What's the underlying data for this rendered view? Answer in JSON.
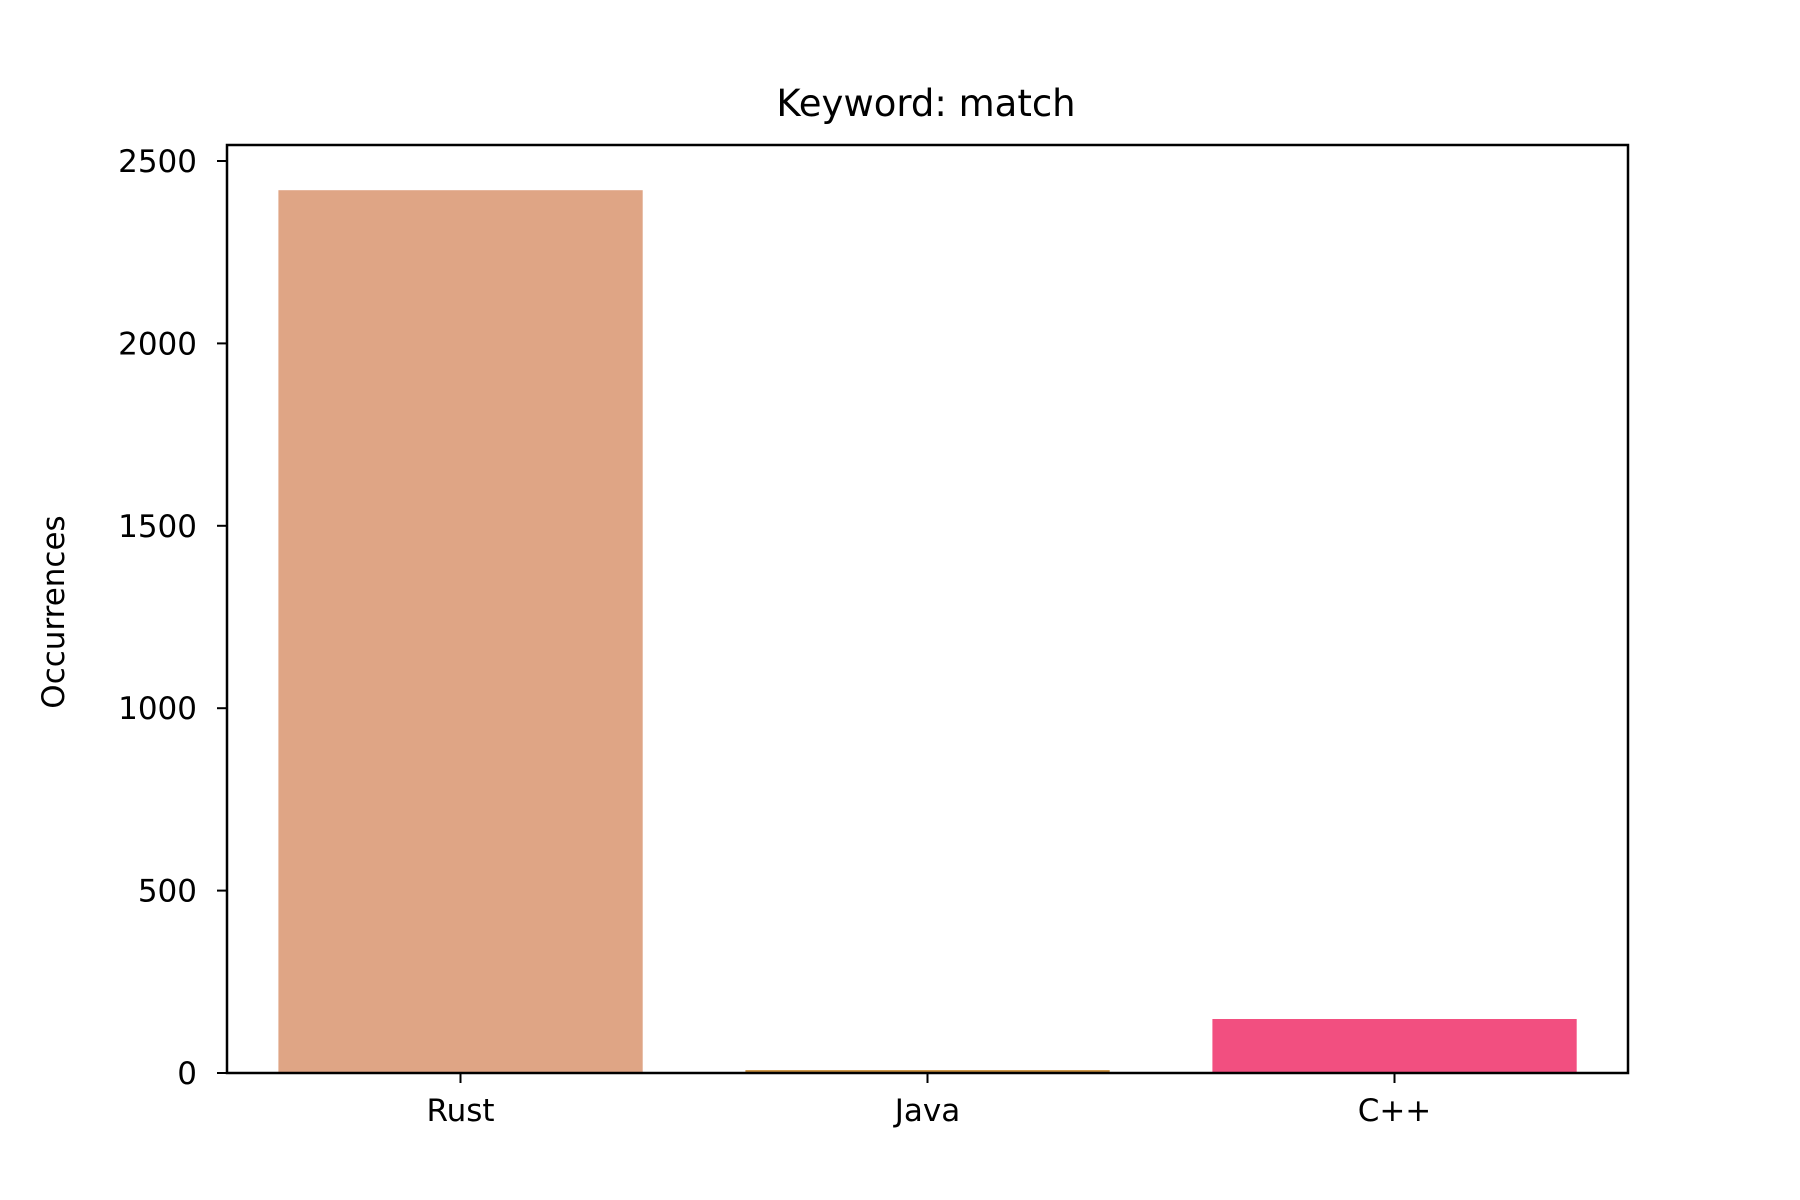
{
  "chart_data": {
    "type": "bar",
    "title": "Keyword: match",
    "xlabel": "",
    "ylabel": "Occurrences",
    "categories": [
      "Rust",
      "Java",
      "C++"
    ],
    "values": [
      2420,
      8,
      148
    ],
    "colors": [
      "#dfa585",
      "#c98e3a",
      "#f24f80"
    ],
    "ylim": [
      0,
      2550
    ],
    "yticks": [
      0,
      500,
      1000,
      1500,
      2000,
      2500
    ],
    "grid": false,
    "legend": "none"
  }
}
